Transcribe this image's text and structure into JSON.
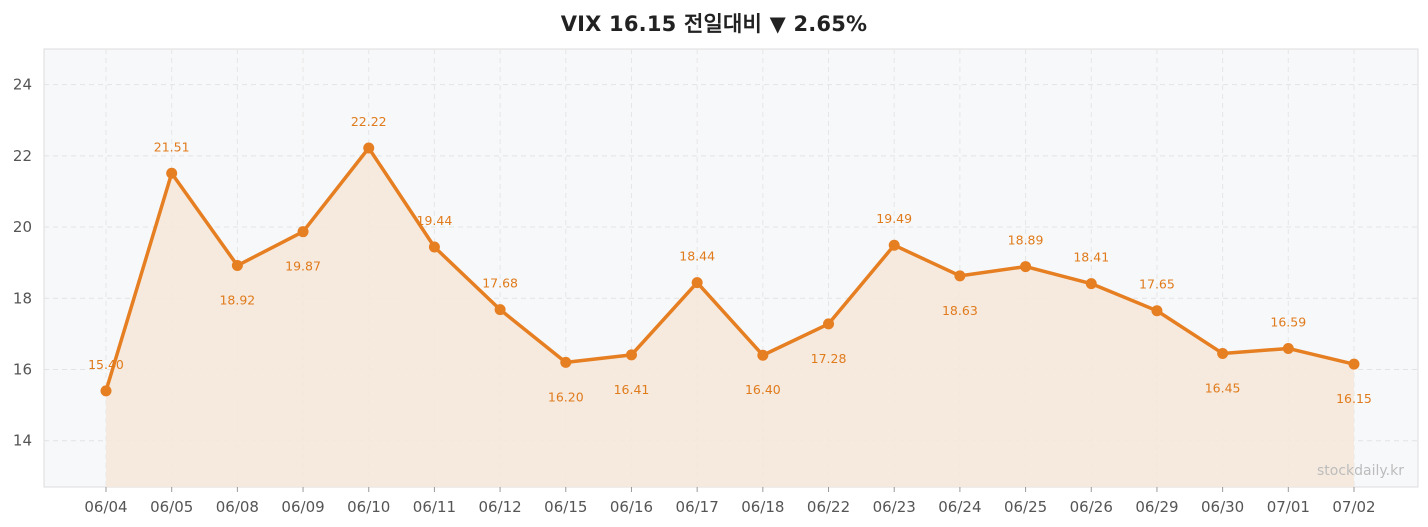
{
  "title": "VIX  16.15  전일대비 ▼ 2.65%",
  "watermark": "stockdaily.kr",
  "colors": {
    "line": "#e67e22",
    "fill": "#f5e8dc",
    "plot_bg": "#f7f8fa",
    "label": "#e07b1c"
  },
  "chart_data": {
    "type": "line",
    "title": "VIX  16.15  전일대비 ▼ 2.65%",
    "xlabel": "",
    "ylabel": "",
    "categories": [
      "06/04",
      "06/05",
      "06/08",
      "06/09",
      "06/10",
      "06/11",
      "06/12",
      "06/15",
      "06/16",
      "06/17",
      "06/18",
      "06/22",
      "06/23",
      "06/24",
      "06/25",
      "06/26",
      "06/29",
      "06/30",
      "07/01",
      "07/02"
    ],
    "series": [
      {
        "values": [
          15.4,
          21.51,
          18.92,
          19.87,
          22.22,
          19.44,
          17.68,
          16.2,
          16.41,
          18.44,
          16.4,
          17.28,
          19.49,
          18.63,
          18.89,
          18.41,
          17.65,
          16.45,
          16.59,
          16.15
        ]
      }
    ],
    "data_labels": [
      "15.40",
      "21.51",
      "18.92",
      "19.87",
      "22.22",
      "19.44",
      "17.68",
      "16.20",
      "16.41",
      "18.44",
      "16.40",
      "17.28",
      "19.49",
      "18.63",
      "18.89",
      "18.41",
      "17.65",
      "16.45",
      "16.59",
      "16.15"
    ],
    "ylim": [
      12.7,
      25.0
    ],
    "yticks": [
      14,
      16,
      18,
      20,
      22,
      24
    ],
    "grid": true,
    "area_fill": true
  }
}
